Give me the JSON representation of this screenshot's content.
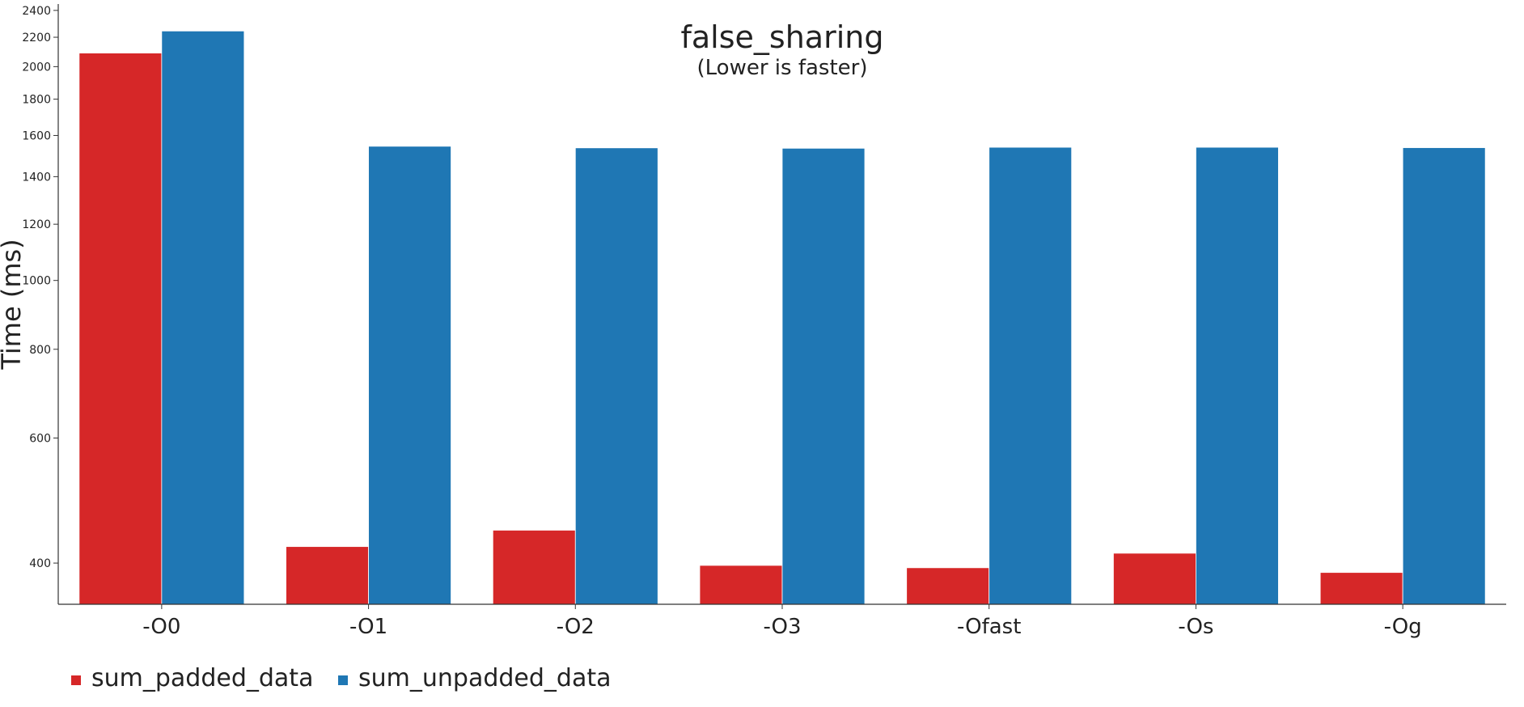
{
  "chart_data": {
    "type": "bar",
    "title": "false_sharing",
    "subtitle": "(Lower is faster)",
    "xlabel": "",
    "ylabel": "Time (ms)",
    "y_scale": "log",
    "ylim": [
      350,
      2450
    ],
    "y_ticks": [
      400,
      600,
      800,
      1000,
      1200,
      1400,
      1600,
      1800,
      2000,
      2200,
      2400
    ],
    "categories": [
      "-O0",
      "-O1",
      "-O2",
      "-O3",
      "-Ofast",
      "-Os",
      "-Og"
    ],
    "series": [
      {
        "name": "sum_padded_data",
        "color": "#d62728",
        "values": [
          2090,
          422,
          445,
          397,
          394,
          413,
          388
        ]
      },
      {
        "name": "sum_unpadded_data",
        "color": "#1f77b4",
        "values": [
          2245,
          1545,
          1537,
          1535,
          1540,
          1540,
          1538
        ]
      }
    ],
    "legend_position": "bottom-left",
    "grid": false
  }
}
